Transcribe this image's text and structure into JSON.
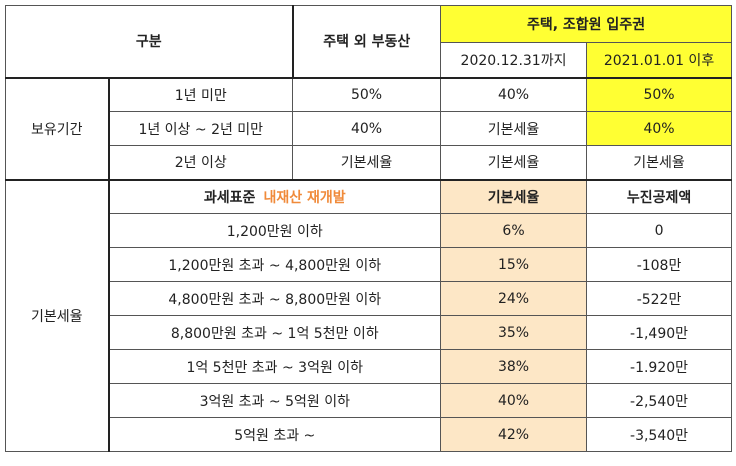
{
  "header": {
    "category": "구분",
    "non_housing": "주택 외 부동산",
    "housing_group": "주택, 조합원 입주권",
    "until_date": "2020.12.31까지",
    "after_date": "2021.01.01 이후"
  },
  "holding_period": {
    "label": "보유기간",
    "rows": [
      {
        "period": "1년 미만",
        "non_housing": "50%",
        "until": "40%",
        "after": "50%"
      },
      {
        "period": "1년 이상 ~ 2년 미만",
        "non_housing": "40%",
        "until": "기본세율",
        "after": "40%"
      },
      {
        "period": "2년 이상",
        "non_housing": "기본세율",
        "until": "기본세율",
        "after": "기본세율"
      }
    ]
  },
  "basic_rate": {
    "label": "기본세율",
    "header": {
      "tax_base": "과세표준",
      "watermark": "내재산 재개발",
      "rate": "기본세율",
      "deduction": "누진공제액"
    },
    "rows": [
      {
        "bracket": "1,200만원 이하",
        "rate": "6%",
        "deduction": "0"
      },
      {
        "bracket": "1,200만원 초과 ~ 4,800만원 이하",
        "rate": "15%",
        "deduction": "-108만"
      },
      {
        "bracket": "4,800만원 초과 ~ 8,800만원 이하",
        "rate": "24%",
        "deduction": "-522만"
      },
      {
        "bracket": "8,800만원 초과 ~ 1억 5천만 이하",
        "rate": "35%",
        "deduction": "-1,490만"
      },
      {
        "bracket": "1억 5천만 초과 ~ 3억원 이하",
        "rate": "38%",
        "deduction": "-1.920만"
      },
      {
        "bracket": "3억원 초과 ~ 5억원 이하",
        "rate": "40%",
        "deduction": "-2,540만"
      },
      {
        "bracket": "5억원 초과 ~",
        "rate": "42%",
        "deduction": "-3,540만"
      }
    ]
  },
  "colors": {
    "yellow_highlight": "#ffff33",
    "beige_highlight": "#fde7c6",
    "watermark": "#f08a3a"
  }
}
